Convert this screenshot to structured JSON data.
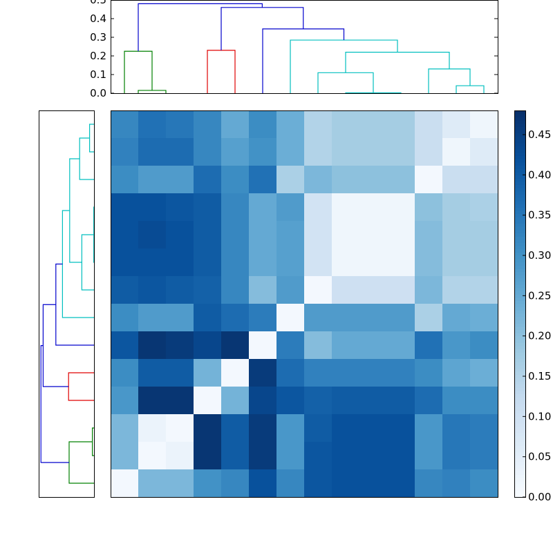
{
  "chart_data": {
    "type": "heatmap",
    "title": "",
    "colormap": "Blues",
    "colormap_stops": [
      "#f7fbff",
      "#deebf7",
      "#c6dbef",
      "#9ecae1",
      "#6baed6",
      "#4292c6",
      "#2171b5",
      "#08519c",
      "#08306b"
    ],
    "size": 14,
    "color_range": [
      0,
      0.48
    ],
    "colorbar_ticks": [
      "0.00",
      "0.05",
      "0.10",
      "0.15",
      "0.20",
      "0.25",
      "0.30",
      "0.35",
      "0.40",
      "0.45"
    ],
    "colorbar_tick_values": [
      0,
      0.05,
      0.1,
      0.15,
      0.2,
      0.25,
      0.3,
      0.35,
      0.4,
      0.45
    ],
    "matrix": [
      [
        0.32,
        0.36,
        0.35,
        0.32,
        0.25,
        0.31,
        0.24,
        0.15,
        0.17,
        0.17,
        0.17,
        0.11,
        0.06,
        0.02
      ],
      [
        0.33,
        0.37,
        0.37,
        0.32,
        0.27,
        0.3,
        0.24,
        0.15,
        0.17,
        0.17,
        0.17,
        0.11,
        0.02,
        0.06
      ],
      [
        0.31,
        0.28,
        0.28,
        0.37,
        0.31,
        0.36,
        0.16,
        0.22,
        0.2,
        0.2,
        0.2,
        0.01,
        0.11,
        0.11
      ],
      [
        0.42,
        0.42,
        0.41,
        0.4,
        0.32,
        0.25,
        0.28,
        0.09,
        0.02,
        0.02,
        0.02,
        0.2,
        0.17,
        0.16
      ],
      [
        0.42,
        0.43,
        0.42,
        0.4,
        0.32,
        0.25,
        0.27,
        0.09,
        0.02,
        0.02,
        0.02,
        0.21,
        0.17,
        0.17
      ],
      [
        0.42,
        0.42,
        0.42,
        0.4,
        0.32,
        0.25,
        0.27,
        0.09,
        0.02,
        0.02,
        0.02,
        0.21,
        0.17,
        0.17
      ],
      [
        0.4,
        0.41,
        0.4,
        0.39,
        0.32,
        0.21,
        0.28,
        0.01,
        0.1,
        0.1,
        0.1,
        0.22,
        0.15,
        0.15
      ],
      [
        0.31,
        0.28,
        0.28,
        0.4,
        0.37,
        0.34,
        0.01,
        0.28,
        0.28,
        0.28,
        0.28,
        0.16,
        0.25,
        0.24
      ],
      [
        0.41,
        0.47,
        0.46,
        0.44,
        0.47,
        0.01,
        0.34,
        0.21,
        0.25,
        0.25,
        0.25,
        0.36,
        0.29,
        0.31
      ],
      [
        0.31,
        0.4,
        0.4,
        0.23,
        0.01,
        0.46,
        0.37,
        0.33,
        0.33,
        0.33,
        0.33,
        0.31,
        0.26,
        0.24
      ],
      [
        0.29,
        0.47,
        0.47,
        0.01,
        0.23,
        0.44,
        0.41,
        0.39,
        0.4,
        0.4,
        0.4,
        0.37,
        0.31,
        0.31
      ],
      [
        0.22,
        0.03,
        0.01,
        0.47,
        0.4,
        0.46,
        0.29,
        0.4,
        0.42,
        0.42,
        0.42,
        0.29,
        0.35,
        0.34
      ],
      [
        0.22,
        0.01,
        0.03,
        0.47,
        0.4,
        0.46,
        0.29,
        0.41,
        0.42,
        0.42,
        0.42,
        0.29,
        0.35,
        0.34
      ],
      [
        0.01,
        0.22,
        0.22,
        0.3,
        0.32,
        0.42,
        0.32,
        0.41,
        0.42,
        0.42,
        0.42,
        0.32,
        0.33,
        0.31
      ]
    ],
    "top_dendrogram": {
      "y_axis_ticks": [
        "0.0",
        "0.1",
        "0.2",
        "0.3",
        "0.4",
        "0.5"
      ],
      "y_axis_tick_values": [
        0.0,
        0.1,
        0.2,
        0.3,
        0.4,
        0.5
      ],
      "ylim": [
        0,
        0.5
      ],
      "leaf_count": 14,
      "colors": {
        "blue": "#0000cc",
        "green": "#008000",
        "red": "#e00000",
        "cyan": "#00bfbf"
      },
      "links": [
        {
          "x": [
            0.5,
            0.5,
            1.5,
            1.5
          ],
          "y": [
            0.0,
            0.015,
            0.015,
            0.0
          ],
          "color": "green"
        },
        {
          "x": [
            0.0,
            0.0,
            1.0,
            1.0
          ],
          "y": [
            0.0,
            0.225,
            0.225,
            0.015
          ],
          "color": "green"
        },
        {
          "x": [
            3.0,
            3.0,
            4.0,
            4.0
          ],
          "y": [
            0.0,
            0.23,
            0.23,
            0.0
          ],
          "color": "red"
        },
        {
          "x": [
            8.0,
            8.0,
            10.0,
            10.0
          ],
          "y": [
            0.0,
            0.002,
            0.002,
            0.0
          ],
          "color": "cyan"
        },
        {
          "x": [
            7.0,
            7.0,
            9.0,
            9.0
          ],
          "y": [
            0.0,
            0.11,
            0.11,
            0.002
          ],
          "color": "cyan"
        },
        {
          "x": [
            12.0,
            12.0,
            13.0,
            13.0
          ],
          "y": [
            0.0,
            0.04,
            0.04,
            0.0
          ],
          "color": "cyan"
        },
        {
          "x": [
            11.0,
            11.0,
            12.5,
            12.5
          ],
          "y": [
            0.0,
            0.13,
            0.13,
            0.04
          ],
          "color": "cyan"
        },
        {
          "x": [
            8.0,
            8.0,
            11.75,
            11.75
          ],
          "y": [
            0.11,
            0.22,
            0.22,
            0.13
          ],
          "color": "cyan"
        },
        {
          "x": [
            6.0,
            6.0,
            9.875,
            9.875
          ],
          "y": [
            0.0,
            0.285,
            0.285,
            0.22
          ],
          "color": "cyan"
        },
        {
          "x": [
            5.0,
            5.0,
            7.9375,
            7.9375
          ],
          "y": [
            0.0,
            0.345,
            0.345,
            0.285
          ],
          "color": "blue"
        },
        {
          "x": [
            3.5,
            3.5,
            6.46875,
            6.46875
          ],
          "y": [
            0.23,
            0.46,
            0.46,
            0.345
          ],
          "color": "blue"
        },
        {
          "x": [
            0.5,
            0.5,
            4.984375,
            4.984375
          ],
          "y": [
            0.225,
            0.48,
            0.48,
            0.46
          ],
          "color": "blue"
        }
      ]
    },
    "left_dendrogram": {
      "xlim": [
        0.5,
        0
      ],
      "leaf_count": 14,
      "leaf_order": "top-to-bottom",
      "links": [
        {
          "x": [
            0.0,
            0.015,
            0.015,
            0.0
          ],
          "y": [
            11.0,
            11.0,
            12.0,
            12.0
          ],
          "color": "green"
        },
        {
          "x": [
            0.0,
            0.225,
            0.225,
            0.015
          ],
          "y": [
            13.0,
            13.0,
            11.5,
            11.5
          ],
          "color": "green"
        },
        {
          "x": [
            0.0,
            0.23,
            0.23,
            0.0
          ],
          "y": [
            9.0,
            9.0,
            10.0,
            10.0
          ],
          "color": "red"
        },
        {
          "x": [
            0.0,
            0.002,
            0.002,
            0.0
          ],
          "y": [
            3.0,
            3.0,
            5.0,
            5.0
          ],
          "color": "cyan"
        },
        {
          "x": [
            0.0,
            0.11,
            0.11,
            0.002
          ],
          "y": [
            6.0,
            6.0,
            4.0,
            4.0
          ],
          "color": "cyan"
        },
        {
          "x": [
            0.0,
            0.04,
            0.04,
            0.0
          ],
          "y": [
            0.0,
            0.0,
            1.0,
            1.0
          ],
          "color": "cyan"
        },
        {
          "x": [
            0.0,
            0.13,
            0.13,
            0.04
          ],
          "y": [
            2.0,
            2.0,
            0.5,
            0.5
          ],
          "color": "cyan"
        },
        {
          "x": [
            0.11,
            0.22,
            0.22,
            0.13
          ],
          "y": [
            5.0,
            5.0,
            1.25,
            1.25
          ],
          "color": "cyan"
        },
        {
          "x": [
            0.0,
            0.285,
            0.285,
            0.22
          ],
          "y": [
            7.0,
            7.0,
            3.125,
            3.125
          ],
          "color": "cyan"
        },
        {
          "x": [
            0.0,
            0.345,
            0.345,
            0.285
          ],
          "y": [
            8.0,
            8.0,
            5.0625,
            5.0625
          ],
          "color": "blue"
        },
        {
          "x": [
            0.23,
            0.46,
            0.46,
            0.345
          ],
          "y": [
            9.5,
            9.5,
            6.53125,
            6.53125
          ],
          "color": "blue"
        },
        {
          "x": [
            0.225,
            0.48,
            0.48,
            0.46
          ],
          "y": [
            12.25,
            12.25,
            8.015625,
            8.015625
          ],
          "color": "blue"
        }
      ]
    }
  }
}
